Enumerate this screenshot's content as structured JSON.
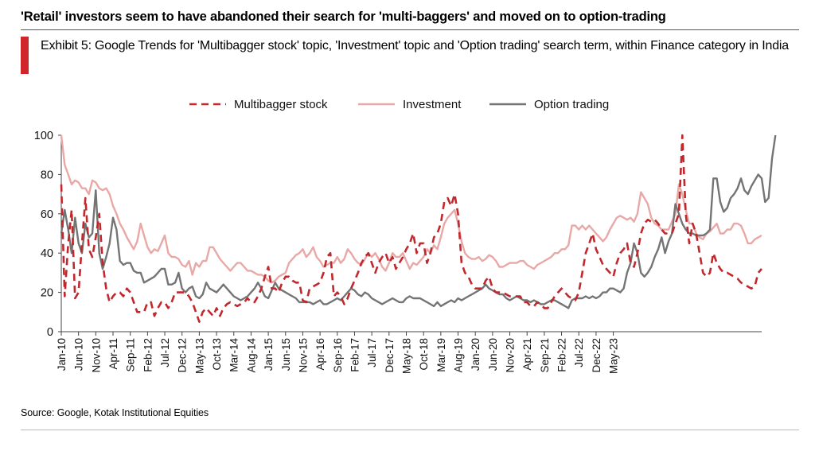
{
  "headline": "'Retail' investors seem to have abandoned their search for 'multi-baggers' and moved on to option-trading",
  "exhibit_title": "Exhibit 5: Google Trends for 'Multibagger stock' topic, 'Investment' topic and 'Option trading' search term, within Finance category in India",
  "source": "Source: Google, Kotak Institutional Equities",
  "chart_data": {
    "type": "line",
    "title": "",
    "xlabel": "",
    "ylabel": "",
    "ylim": [
      0,
      100
    ],
    "yticks": [
      0,
      20,
      40,
      60,
      80,
      100
    ],
    "x_start": "Jan-10",
    "x_step_months": 1,
    "xticks": [
      "Jan-10",
      "Jun-10",
      "Nov-10",
      "Apr-11",
      "Sep-11",
      "Feb-12",
      "Jul-12",
      "Dec-12",
      "May-13",
      "Oct-13",
      "Mar-14",
      "Aug-14",
      "Jan-15",
      "Jun-15",
      "Nov-15",
      "Apr-16",
      "Sep-16",
      "Feb-17",
      "Jul-17",
      "Dec-17",
      "May-18",
      "Oct-18",
      "Mar-19",
      "Aug-19",
      "Jan-20",
      "Jun-20",
      "Nov-20",
      "Apr-21",
      "Sep-21",
      "Feb-22",
      "Jul-22",
      "Dec-22",
      "May-23"
    ],
    "grid": false,
    "legend_position": "top",
    "series": [
      {
        "name": "Multibagger stock",
        "style": "dashed",
        "color": "#c0282d",
        "values": [
          75,
          18,
          45,
          62,
          17,
          20,
          45,
          68,
          42,
          38,
          48,
          60,
          35,
          22,
          15,
          18,
          20,
          20,
          18,
          22,
          20,
          15,
          10,
          10,
          10,
          15,
          15,
          8,
          12,
          15,
          15,
          12,
          15,
          20,
          20,
          20,
          20,
          18,
          15,
          10,
          5,
          10,
          12,
          10,
          8,
          12,
          8,
          12,
          14,
          15,
          14,
          13,
          14,
          15,
          17,
          15,
          15,
          18,
          22,
          28,
          33,
          22,
          22,
          20,
          25,
          28,
          28,
          26,
          25,
          25,
          16,
          15,
          22,
          23,
          24,
          25,
          30,
          38,
          40,
          18,
          20,
          18,
          14,
          17,
          22,
          26,
          30,
          35,
          38,
          40,
          35,
          30,
          35,
          38,
          40,
          35,
          38,
          32,
          35,
          38,
          42,
          45,
          50,
          40,
          45,
          45,
          35,
          40,
          48,
          50,
          55,
          66,
          68,
          64,
          70,
          60,
          35,
          30,
          28,
          24,
          22,
          22,
          22,
          26,
          28,
          22,
          20,
          20,
          20,
          19,
          18,
          18,
          18,
          18,
          15,
          15,
          13,
          13,
          15,
          14,
          12,
          12,
          15,
          18,
          20,
          22,
          20,
          18,
          17,
          16,
          20,
          30,
          40,
          45,
          50,
          42,
          38,
          34,
          32,
          30,
          28,
          35,
          40,
          42,
          45,
          35,
          33,
          40,
          50,
          55,
          57,
          56,
          57,
          55,
          52,
          50,
          50,
          50,
          55,
          60,
          100,
          60,
          45,
          55,
          50,
          40,
          30,
          28,
          30,
          40,
          35,
          32,
          30,
          30,
          29,
          28,
          27,
          25,
          24,
          23,
          22,
          23,
          30,
          32
        ]
      },
      {
        "name": "Investment",
        "style": "solid",
        "color": "#e8a8a6",
        "values": [
          100,
          85,
          80,
          75,
          77,
          76,
          73,
          73,
          70,
          77,
          76,
          73,
          72,
          73,
          70,
          64,
          60,
          55,
          52,
          48,
          45,
          42,
          46,
          55,
          49,
          43,
          40,
          42,
          41,
          45,
          49,
          40,
          38,
          38,
          37,
          34,
          33,
          36,
          29,
          35,
          33,
          36,
          36,
          43,
          43,
          40,
          37,
          35,
          33,
          31,
          33,
          35,
          35,
          33,
          31,
          31,
          30,
          29,
          29,
          28,
          26,
          25,
          26,
          28,
          29,
          30,
          35,
          37,
          39,
          40,
          42,
          38,
          40,
          43,
          38,
          36,
          33,
          34,
          35,
          35,
          38,
          35,
          37,
          42,
          40,
          37,
          35,
          34,
          37,
          40,
          38,
          40,
          37,
          33,
          31,
          35,
          40,
          38,
          38,
          40,
          36,
          32,
          35,
          34,
          36,
          38,
          42,
          40,
          44,
          42,
          48,
          55,
          58,
          60,
          62,
          55,
          46,
          40,
          38,
          37,
          37,
          38,
          36,
          37,
          39,
          38,
          36,
          33,
          33,
          34,
          35,
          35,
          35,
          36,
          36,
          34,
          33,
          32,
          34,
          35,
          36,
          37,
          38,
          40,
          40,
          42,
          42,
          44,
          54,
          54,
          52,
          54,
          52,
          54,
          52,
          50,
          48,
          46,
          48,
          52,
          55,
          58,
          59,
          58,
          57,
          58,
          56,
          60,
          71,
          68,
          65,
          58,
          55,
          54,
          52,
          52,
          52,
          56,
          60,
          75,
          70,
          62,
          55,
          55,
          50,
          48,
          47,
          50,
          51,
          53,
          55,
          50,
          50,
          52,
          52,
          55,
          55,
          54,
          50,
          45,
          45,
          47,
          48,
          49
        ]
      },
      {
        "name": "Option trading",
        "style": "solid",
        "color": "#747474",
        "values": [
          50,
          62,
          52,
          40,
          58,
          45,
          40,
          55,
          48,
          50,
          72,
          40,
          32,
          38,
          45,
          58,
          52,
          36,
          34,
          35,
          35,
          31,
          30,
          30,
          25,
          26,
          27,
          28,
          30,
          32,
          32,
          24,
          24,
          25,
          30,
          22,
          20,
          22,
          23,
          18,
          17,
          19,
          25,
          22,
          21,
          20,
          22,
          24,
          22,
          20,
          18,
          17,
          16,
          17,
          18,
          20,
          22,
          25,
          22,
          18,
          17,
          21,
          25,
          22,
          21,
          20,
          19,
          18,
          17,
          15,
          15,
          15,
          15,
          14,
          15,
          16,
          14,
          14,
          15,
          16,
          17,
          16,
          18,
          20,
          22,
          21,
          19,
          18,
          20,
          19,
          17,
          16,
          15,
          14,
          15,
          16,
          17,
          16,
          15,
          15,
          17,
          18,
          17,
          17,
          17,
          16,
          15,
          14,
          13,
          15,
          13,
          14,
          15,
          16,
          15,
          17,
          16,
          17,
          18,
          19,
          20,
          21,
          22,
          24,
          22,
          21,
          20,
          19,
          19,
          17,
          16,
          17,
          18,
          17,
          16,
          16,
          15,
          16,
          15,
          14,
          14,
          15,
          16,
          16,
          15,
          14,
          13,
          12,
          16,
          17,
          17,
          17,
          18,
          17,
          18,
          17,
          18,
          20,
          20,
          22,
          22,
          21,
          20,
          22,
          30,
          35,
          45,
          40,
          30,
          28,
          30,
          33,
          38,
          42,
          48,
          40,
          46,
          50,
          65,
          60,
          55,
          52,
          50,
          50,
          49,
          49,
          49,
          50,
          52,
          78,
          78,
          66,
          61,
          63,
          68,
          70,
          73,
          78,
          72,
          70,
          74,
          77,
          80,
          78,
          66,
          68,
          88,
          100
        ]
      }
    ]
  }
}
